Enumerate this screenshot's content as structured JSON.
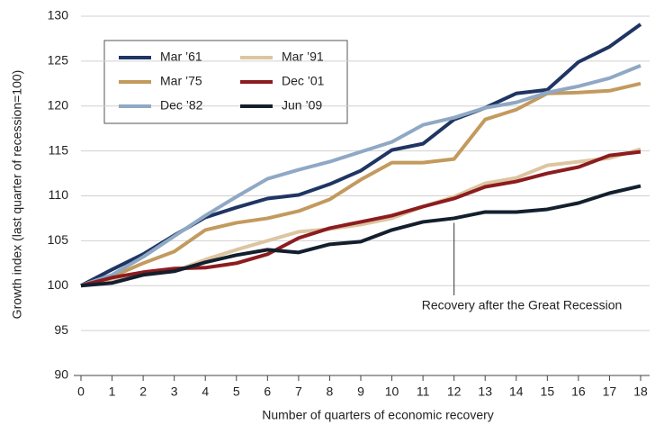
{
  "chart_data": {
    "type": "line",
    "x": [
      0,
      1,
      2,
      3,
      4,
      5,
      6,
      7,
      8,
      9,
      10,
      11,
      12,
      13,
      14,
      15,
      16,
      17,
      18
    ],
    "xlim": [
      0,
      18
    ],
    "xticks": [
      0,
      1,
      2,
      3,
      4,
      5,
      6,
      7,
      8,
      9,
      10,
      11,
      12,
      13,
      14,
      15,
      16,
      17,
      18
    ],
    "ylim": [
      90,
      130
    ],
    "yticks": [
      90,
      95,
      100,
      105,
      110,
      115,
      120,
      125,
      130
    ],
    "xlabel": "Number of quarters of economic recovery",
    "ylabel": "Growth index (last quarter of recession=100)",
    "grid": true,
    "legend": "upper left",
    "series": [
      {
        "name": "Mar ’61",
        "color": "#1f3563",
        "values": [
          100,
          101.8,
          103.5,
          105.6,
          107.6,
          108.7,
          109.7,
          110.1,
          111.3,
          112.8,
          115.1,
          115.8,
          118.5,
          119.8,
          121.4,
          121.8,
          124.9,
          126.6,
          129.1
        ]
      },
      {
        "name": "Mar ’75",
        "color": "#c39a5e",
        "values": [
          100,
          101,
          102.5,
          103.8,
          106.2,
          107,
          107.5,
          108.3,
          109.6,
          111.8,
          113.7,
          113.7,
          114.1,
          118.5,
          119.6,
          121.4,
          121.5,
          121.7,
          122.5
        ]
      },
      {
        "name": "Dec ’82",
        "color": "#8fa8c4",
        "values": [
          100,
          101.2,
          103.2,
          105.5,
          107.8,
          109.9,
          111.9,
          112.9,
          113.8,
          114.9,
          116,
          117.9,
          118.7,
          119.8,
          120.4,
          121.5,
          122.2,
          123.1,
          124.5
        ]
      },
      {
        "name": "Mar ’91",
        "color": "#dcc5a0",
        "values": [
          100,
          100.6,
          101.2,
          101.6,
          102.9,
          104,
          105,
          106,
          106.3,
          106.8,
          107.5,
          108.8,
          109.9,
          111.4,
          112,
          113.4,
          113.8,
          114.2,
          115.2
        ]
      },
      {
        "name": "Dec ’01",
        "color": "#8c1c1f",
        "values": [
          100,
          100.9,
          101.5,
          101.9,
          102,
          102.5,
          103.5,
          105.3,
          106.4,
          107.1,
          107.8,
          108.8,
          109.7,
          111,
          111.6,
          112.5,
          113.2,
          114.5,
          114.9
        ]
      },
      {
        "name": "Jun ’09",
        "color": "#141f2e",
        "values": [
          100,
          100.3,
          101.2,
          101.6,
          102.6,
          103.4,
          104,
          103.7,
          104.6,
          104.9,
          106.2,
          107.1,
          107.5,
          108.2,
          108.2,
          108.5,
          109.2,
          110.3,
          111.1
        ]
      }
    ],
    "annotation": {
      "text": "Recovery after the Great Recession",
      "x": 12
    }
  }
}
